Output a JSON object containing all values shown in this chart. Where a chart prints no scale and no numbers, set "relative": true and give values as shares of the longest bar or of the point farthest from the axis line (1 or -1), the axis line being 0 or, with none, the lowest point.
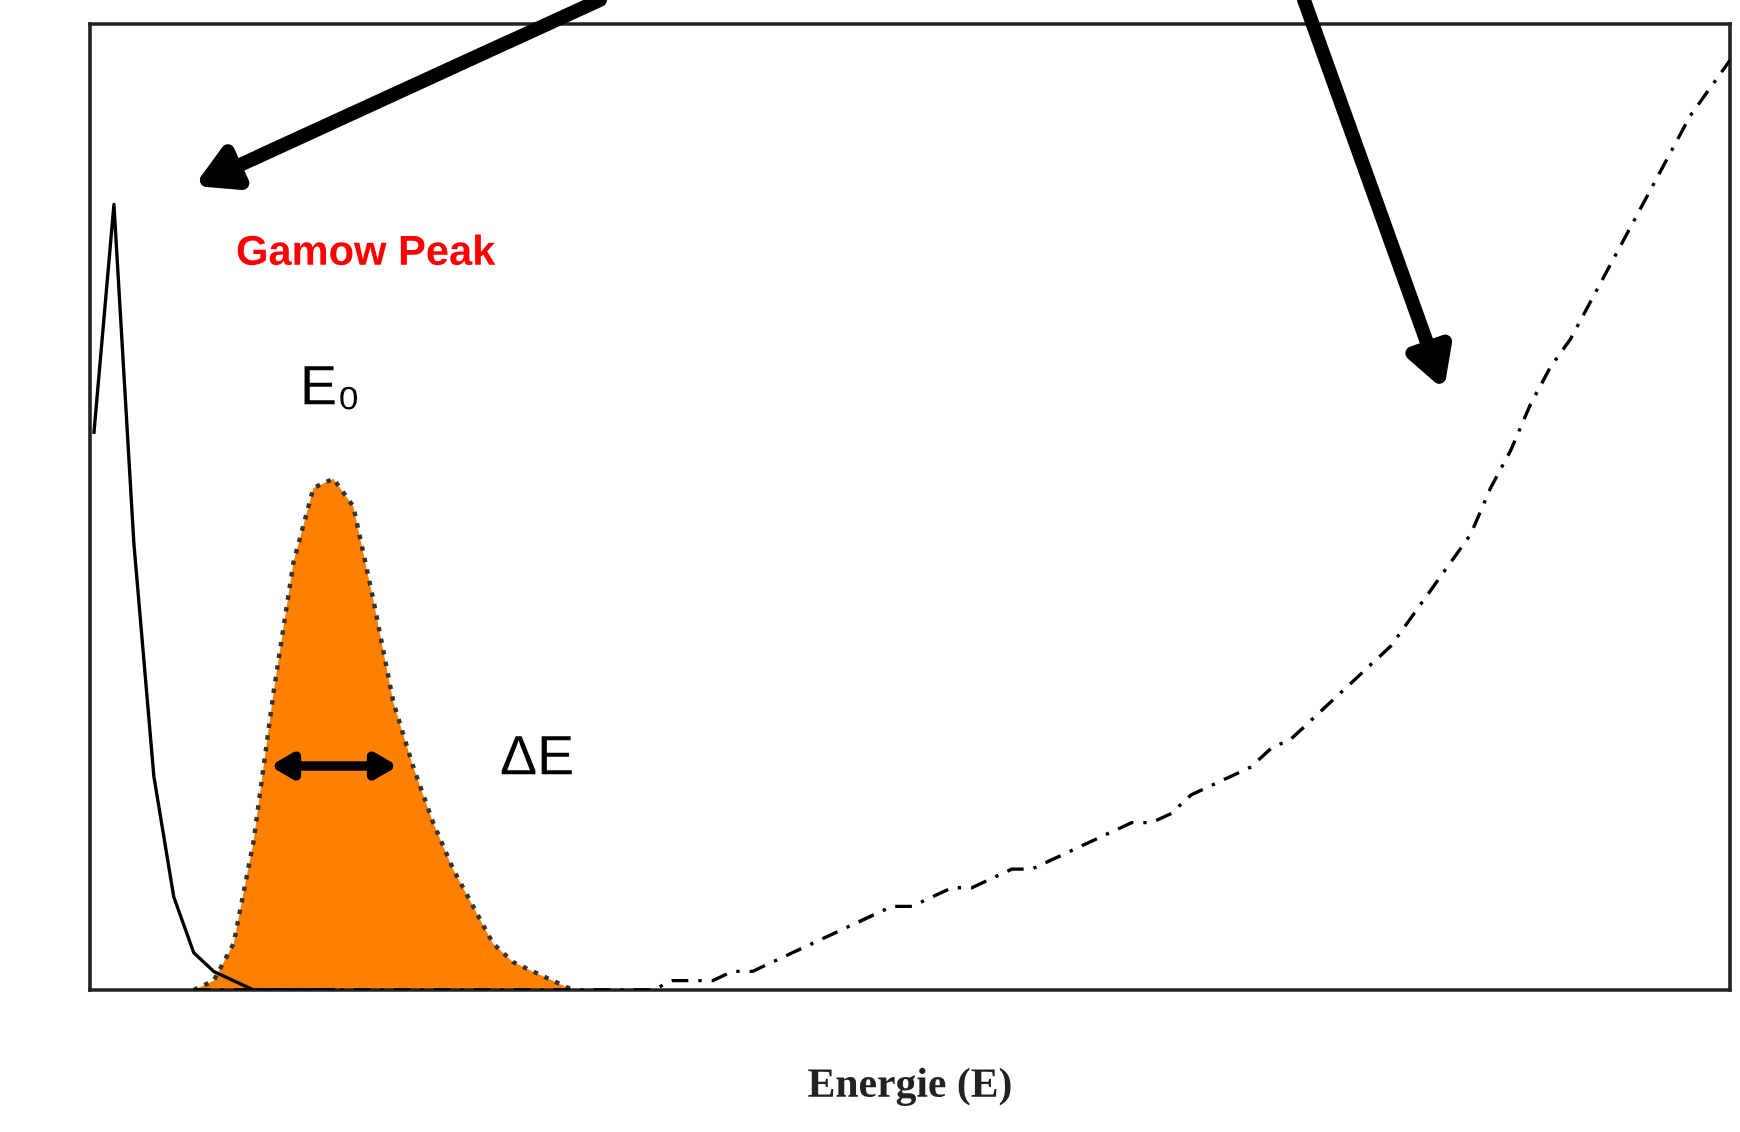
{
  "chart_data": {
    "type": "line",
    "relative": true,
    "xlabel": "Energie (E)",
    "tick_labels": false,
    "categories": [
      null,
      null,
      null,
      null,
      null,
      null,
      null,
      null,
      null,
      null,
      null,
      null,
      null,
      null,
      null,
      null,
      null,
      null,
      null,
      null,
      null,
      null,
      null,
      null,
      null,
      null,
      null,
      null,
      null,
      null,
      null,
      null,
      null,
      null,
      null,
      null,
      null,
      null,
      null,
      null,
      null,
      null,
      null,
      null,
      null,
      null,
      null,
      null,
      null,
      null,
      null,
      null,
      null,
      null,
      null,
      null,
      null,
      null,
      null,
      null,
      null,
      null,
      null,
      null,
      null,
      null,
      null,
      null,
      null,
      null,
      null,
      null,
      null,
      null,
      null,
      null,
      null,
      null,
      null,
      null,
      null,
      null,
      null
    ],
    "series": [
      {
        "color": "#000000",
        "line_style": "solid",
        "values": [
          0.6,
          0.845,
          0.48,
          0.23,
          0.1,
          0.04,
          0.02,
          0.01,
          0,
          0,
          0,
          0,
          0,
          null,
          null,
          null,
          null,
          null,
          null,
          null,
          null,
          null,
          null,
          null,
          null,
          null,
          null,
          null,
          null,
          null,
          null,
          null,
          null,
          null,
          null,
          null,
          null,
          null,
          null,
          null,
          null,
          null,
          null,
          null,
          null,
          null,
          null,
          null,
          null,
          null,
          null,
          null,
          null,
          null,
          null,
          null,
          null,
          null,
          null,
          null,
          null,
          null,
          null,
          null,
          null,
          null,
          null,
          null,
          null,
          null,
          null,
          null,
          null,
          null,
          null,
          null,
          null,
          null,
          null,
          null,
          null,
          null,
          null
        ]
      },
      {
        "type": "area",
        "color": "#ff8000",
        "line_style": "dotted",
        "values": [
          null,
          null,
          null,
          null,
          null,
          0,
          0.01,
          0.05,
          0.16,
          0.32,
          0.46,
          0.54,
          0.55,
          0.52,
          0.42,
          0.31,
          0.24,
          0.18,
          0.13,
          0.09,
          0.05,
          0.03,
          0.02,
          0.01,
          0,
          null,
          null,
          null,
          null,
          null,
          null,
          null,
          null,
          null,
          null,
          null,
          null,
          null,
          null,
          null,
          null,
          null,
          null,
          null,
          null,
          null,
          null,
          null,
          null,
          null,
          null,
          null,
          null,
          null,
          null,
          null,
          null,
          null,
          null,
          null,
          null,
          null,
          null,
          null,
          null,
          null,
          null,
          null,
          null,
          null,
          null,
          null,
          null,
          null,
          null,
          null,
          null,
          null,
          null,
          null,
          null,
          null,
          null
        ]
      },
      {
        "color": "#000000",
        "line_style": "dashed",
        "values": [
          null,
          null,
          null,
          null,
          null,
          0,
          0,
          0,
          0,
          0,
          0,
          0,
          0,
          0,
          0,
          0,
          0,
          0,
          0,
          0,
          0,
          0,
          0,
          0,
          0,
          0,
          0,
          0,
          0,
          0.01,
          0.01,
          0.01,
          0.02,
          0.02,
          0.03,
          0.04,
          0.05,
          0.06,
          0.07,
          0.08,
          0.09,
          0.09,
          0.1,
          0.11,
          0.11,
          0.12,
          0.13,
          0.13,
          0.14,
          0.15,
          0.16,
          0.17,
          0.18,
          0.18,
          0.19,
          0.21,
          0.22,
          0.23,
          0.24,
          0.26,
          0.27,
          0.29,
          0.31,
          0.33,
          0.35,
          0.37,
          0.4,
          0.43,
          0.46,
          0.49,
          0.54,
          0.58,
          0.63,
          0.67,
          0.7,
          0.74,
          0.78,
          0.82,
          0.86,
          0.9,
          0.94,
          0.97,
          1.0
        ]
      }
    ],
    "annotations": [
      "Gamow Peak",
      "E₀",
      "ΔE"
    ]
  }
}
